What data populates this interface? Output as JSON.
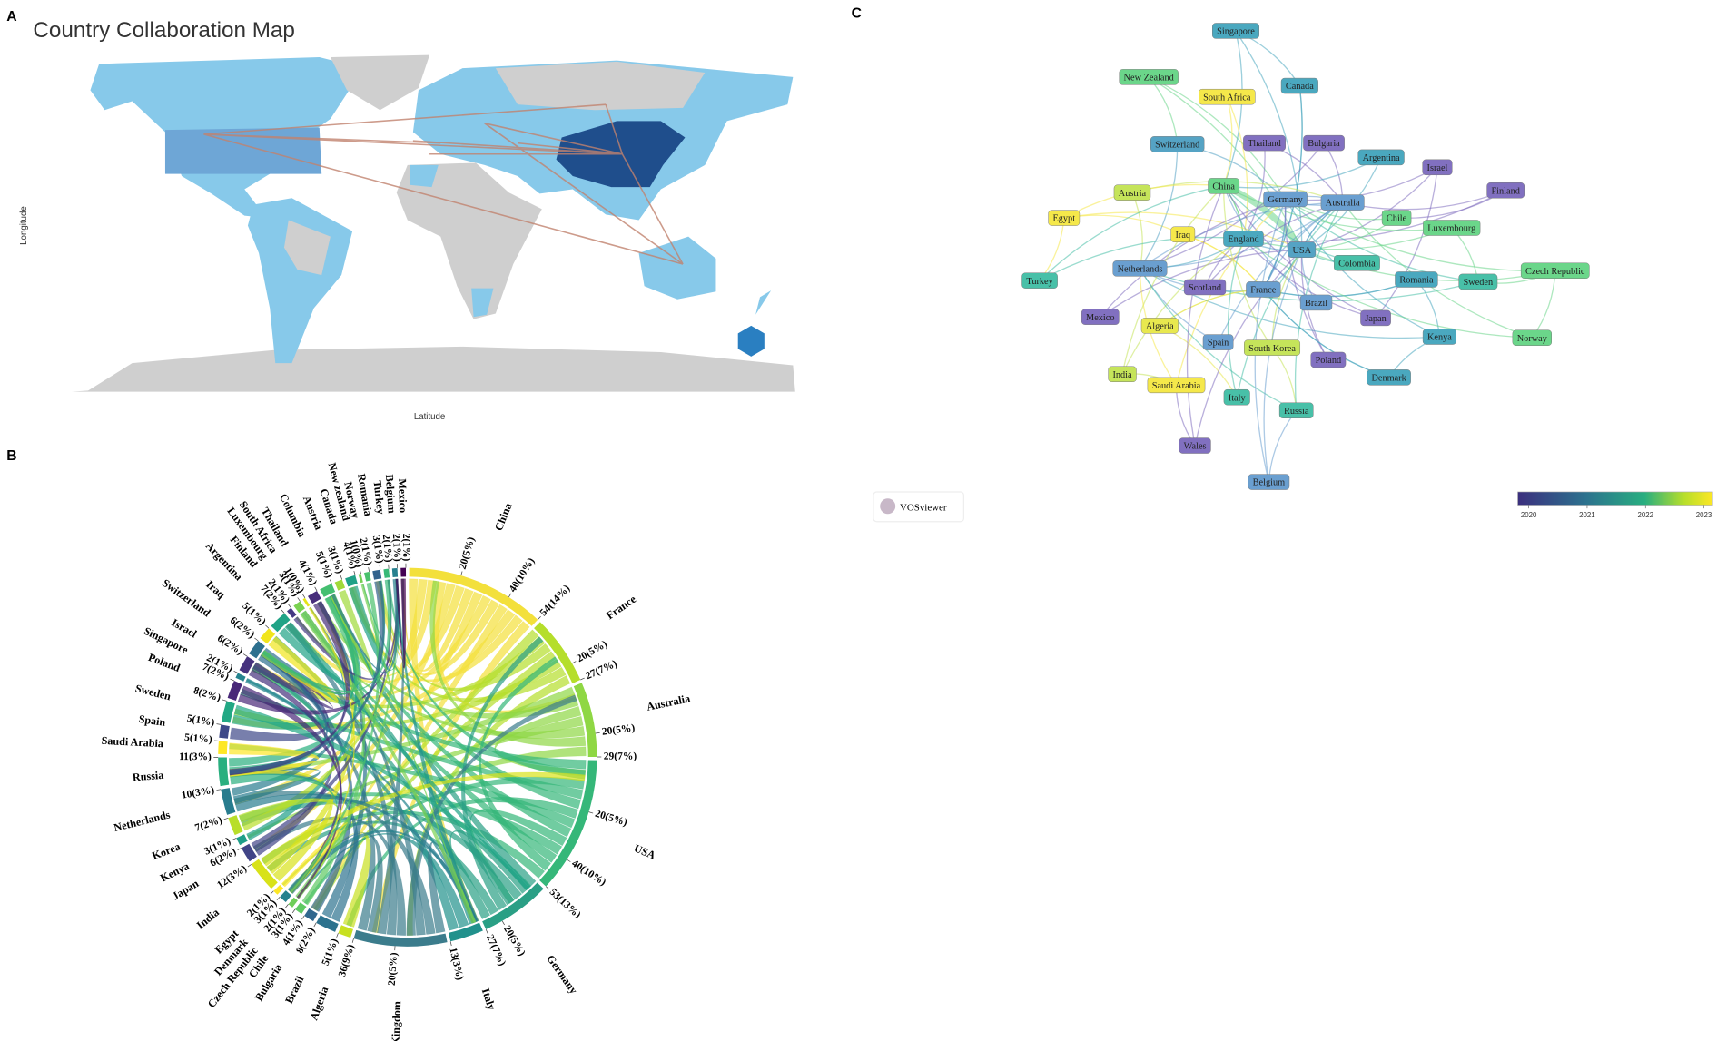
{
  "panel_a": {
    "label": "A",
    "title": "Country Collaboration Map",
    "y_axis": "Longitude",
    "x_axis": "Latitude"
  },
  "panel_b": {
    "label": "B",
    "countries": [
      {
        "name": "China",
        "color": "#f3e03b",
        "ticks": [
          {
            "value": 20,
            "label": "20(5%)"
          },
          {
            "value": 40,
            "label": "40(10%)"
          },
          {
            "value": 54,
            "label": "54(14%)"
          }
        ]
      },
      {
        "name": "France",
        "color": "#b5de2b",
        "ticks": [
          {
            "value": 20,
            "label": "20(5%)"
          },
          {
            "value": 27,
            "label": "27(7%)"
          }
        ]
      },
      {
        "name": "Australia",
        "color": "#8fd744",
        "ticks": [
          {
            "value": 20,
            "label": "20(5%)"
          },
          {
            "value": 29,
            "label": "29(7%)"
          }
        ]
      },
      {
        "name": "USA",
        "color": "#35b779",
        "ticks": [
          {
            "value": 20,
            "label": "20(5%)"
          },
          {
            "value": 40,
            "label": "40(10%)"
          },
          {
            "value": 53,
            "label": "53(13%)"
          }
        ]
      },
      {
        "name": "Germany",
        "color": "#2a9f85",
        "ticks": [
          {
            "value": 20,
            "label": "20(5%)"
          },
          {
            "value": 27,
            "label": "27(7%)"
          }
        ]
      },
      {
        "name": "Italy",
        "color": "#21918c",
        "ticks": [
          {
            "value": 13,
            "label": "13(3%)"
          }
        ]
      },
      {
        "name": "United Kingdom",
        "color": "#3b7c8c",
        "ticks": [
          {
            "value": 20,
            "label": "20(5%)"
          },
          {
            "value": 36,
            "label": "36(9%)"
          }
        ]
      },
      {
        "name": "Algeria",
        "color": "#c8e020",
        "ticks": [
          {
            "value": 5,
            "label": "5(1%)"
          }
        ]
      },
      {
        "name": "Brazil",
        "color": "#2c728e",
        "ticks": [
          {
            "value": 8,
            "label": "8(2%)"
          }
        ]
      },
      {
        "name": "Bulgaria",
        "color": "#31688e",
        "ticks": [
          {
            "value": 4,
            "label": "4(1%)"
          }
        ]
      },
      {
        "name": "Chile",
        "color": "#5ec962",
        "ticks": [
          {
            "value": 3,
            "label": "3(1%)"
          }
        ]
      },
      {
        "name": "Czech Republic",
        "color": "#6ece58",
        "ticks": [
          {
            "value": 2,
            "label": "2(1%)"
          }
        ]
      },
      {
        "name": "Denmark",
        "color": "#26828e",
        "ticks": [
          {
            "value": 3,
            "label": "3(1%)"
          }
        ]
      },
      {
        "name": "Egypt",
        "color": "#fde725",
        "ticks": [
          {
            "value": 2,
            "label": "2(1%)"
          }
        ]
      },
      {
        "name": "India",
        "color": "#d8e219",
        "ticks": [
          {
            "value": 12,
            "label": "12(3%)"
          }
        ]
      },
      {
        "name": "Japan",
        "color": "#414487",
        "ticks": [
          {
            "value": 6,
            "label": "6(2%)"
          }
        ]
      },
      {
        "name": "Kenya",
        "color": "#1f9e89",
        "ticks": [
          {
            "value": 3,
            "label": "3(1%)"
          }
        ]
      },
      {
        "name": "Korea",
        "color": "#b8de29",
        "ticks": [
          {
            "value": 7,
            "label": "7(2%)"
          }
        ]
      },
      {
        "name": "Netherlands",
        "color": "#287c8e",
        "ticks": [
          {
            "value": 10,
            "label": "10(3%)"
          }
        ]
      },
      {
        "name": "Russia",
        "color": "#29af7f",
        "ticks": [
          {
            "value": 11,
            "label": "11(3%)"
          }
        ]
      },
      {
        "name": "Saudi Arabia",
        "color": "#fde725",
        "ticks": [
          {
            "value": 5,
            "label": "5(1%)"
          }
        ]
      },
      {
        "name": "Spain",
        "color": "#3e4989",
        "ticks": [
          {
            "value": 5,
            "label": "5(1%)"
          }
        ]
      },
      {
        "name": "Sweden",
        "color": "#22a884",
        "ticks": [
          {
            "value": 8,
            "label": "8(2%)"
          }
        ]
      },
      {
        "name": "Poland",
        "color": "#482878",
        "ticks": [
          {
            "value": 7,
            "label": "7(2%)"
          }
        ]
      },
      {
        "name": "Singapore",
        "color": "#25848e",
        "ticks": [
          {
            "value": 2,
            "label": "2(1%)"
          }
        ]
      },
      {
        "name": "Israel",
        "color": "#46327e",
        "ticks": [
          {
            "value": 6,
            "label": "6(2%)"
          }
        ]
      },
      {
        "name": "Switzerland",
        "color": "#2d708e",
        "ticks": [
          {
            "value": 6,
            "label": "6(2%)"
          }
        ]
      },
      {
        "name": "Iraq",
        "color": "#f1e51d",
        "ticks": [
          {
            "value": 5,
            "label": "5(1%)"
          }
        ]
      },
      {
        "name": "Argentina",
        "color": "#20a386",
        "ticks": [
          {
            "value": 7,
            "label": "7(2%)"
          }
        ]
      },
      {
        "name": "Finland",
        "color": "#443a83",
        "ticks": [
          {
            "value": 2,
            "label": "2(1%)"
          }
        ]
      },
      {
        "name": "Luxembourg",
        "color": "#7ad151",
        "ticks": [
          {
            "value": 3,
            "label": "3(1%)"
          }
        ]
      },
      {
        "name": "South Africa",
        "color": "#e5e419",
        "ticks": [
          {
            "value": 1,
            "label": "1(0%)"
          }
        ]
      },
      {
        "name": "Thailand",
        "color": "#472d7b",
        "ticks": [
          {
            "value": 4,
            "label": "4(1%)"
          }
        ]
      },
      {
        "name": "Columbia",
        "color": "#44bf70",
        "ticks": [
          {
            "value": 5,
            "label": "5(1%)"
          }
        ]
      },
      {
        "name": "Austria",
        "color": "#a0da39",
        "ticks": [
          {
            "value": 3,
            "label": "3(1%)"
          }
        ]
      },
      {
        "name": "Canada",
        "color": "#1fa187",
        "ticks": [
          {
            "value": 4,
            "label": "4(1%)"
          }
        ]
      },
      {
        "name": "New zealand",
        "color": "#75d054",
        "ticks": [
          {
            "value": 1,
            "label": "1(0%)"
          }
        ]
      },
      {
        "name": "Norway",
        "color": "#4ac16d",
        "ticks": [
          {
            "value": 2,
            "label": "2(1%)"
          }
        ]
      },
      {
        "name": "Romania",
        "color": "#33638d",
        "ticks": [
          {
            "value": 3,
            "label": "3(1%)"
          }
        ]
      },
      {
        "name": "Turkey",
        "color": "#38b977",
        "ticks": [
          {
            "value": 2,
            "label": "2(1%)"
          }
        ]
      },
      {
        "name": "Belgium",
        "color": "#277f8e",
        "ticks": [
          {
            "value": 2,
            "label": "2(1%)"
          }
        ]
      },
      {
        "name": "Mexico",
        "color": "#440154",
        "ticks": [
          {
            "value": 2,
            "label": "2(1%)"
          }
        ]
      }
    ]
  },
  "panel_c": {
    "label": "C",
    "brand": "VOSviewer",
    "legend_ticks": [
      2020,
      2021,
      2022,
      2023
    ],
    "nodes": [
      {
        "label": "Singapore",
        "color": "#4aa8bf"
      },
      {
        "label": "New Zealand",
        "color": "#6bd68a"
      },
      {
        "label": "South Africa",
        "color": "#f5e84a"
      },
      {
        "label": "Canada",
        "color": "#4aa8bf"
      },
      {
        "label": "Switzerland",
        "color": "#55a3c4"
      },
      {
        "label": "Thailand",
        "color": "#8170c0"
      },
      {
        "label": "Bulgaria",
        "color": "#8170c0"
      },
      {
        "label": "Argentina",
        "color": "#4aa8bf"
      },
      {
        "label": "Israel",
        "color": "#8170c0"
      },
      {
        "label": "China",
        "color": "#6bd68a"
      },
      {
        "label": "Germany",
        "color": "#6a9fd0"
      },
      {
        "label": "Australia",
        "color": "#6a9fd0"
      },
      {
        "label": "Finland",
        "color": "#8170c0"
      },
      {
        "label": "Austria",
        "color": "#c5e45a"
      },
      {
        "label": "Egypt",
        "color": "#f5e84a"
      },
      {
        "label": "Chile",
        "color": "#6bd68a"
      },
      {
        "label": "Luxembourg",
        "color": "#6bd68a"
      },
      {
        "label": "Iraq",
        "color": "#f5e84a"
      },
      {
        "label": "England",
        "color": "#4aa8bf"
      },
      {
        "label": "USA",
        "color": "#55a3c4"
      },
      {
        "label": "Netherlands",
        "color": "#6a9fd0"
      },
      {
        "label": "Colombia",
        "color": "#48c0a8"
      },
      {
        "label": "Czech Republic",
        "color": "#6bd68a"
      },
      {
        "label": "Turkey",
        "color": "#48c0a8"
      },
      {
        "label": "Romania",
        "color": "#4aa8bf"
      },
      {
        "label": "Sweden",
        "color": "#48c0a8"
      },
      {
        "label": "Scotland",
        "color": "#8170c0"
      },
      {
        "label": "France",
        "color": "#6a9fd0"
      },
      {
        "label": "Brazil",
        "color": "#6a9fd0"
      },
      {
        "label": "Mexico",
        "color": "#8170c0"
      },
      {
        "label": "Japan",
        "color": "#8170c0"
      },
      {
        "label": "Algeria",
        "color": "#e8e84e"
      },
      {
        "label": "Kenya",
        "color": "#4aa8bf"
      },
      {
        "label": "Norway",
        "color": "#6bd68a"
      },
      {
        "label": "Spain",
        "color": "#6a9fd0"
      },
      {
        "label": "South Korea",
        "color": "#c5e45a"
      },
      {
        "label": "Poland",
        "color": "#8170c0"
      },
      {
        "label": "India",
        "color": "#c5e45a"
      },
      {
        "label": "Denmark",
        "color": "#4aa8bf"
      },
      {
        "label": "Saudi Arabia",
        "color": "#f5e84a"
      },
      {
        "label": "Italy",
        "color": "#48c0a8"
      },
      {
        "label": "Russia",
        "color": "#48c0a8"
      },
      {
        "label": "Wales",
        "color": "#8170c0"
      },
      {
        "label": "Belgium",
        "color": "#6a9fd0"
      }
    ]
  }
}
